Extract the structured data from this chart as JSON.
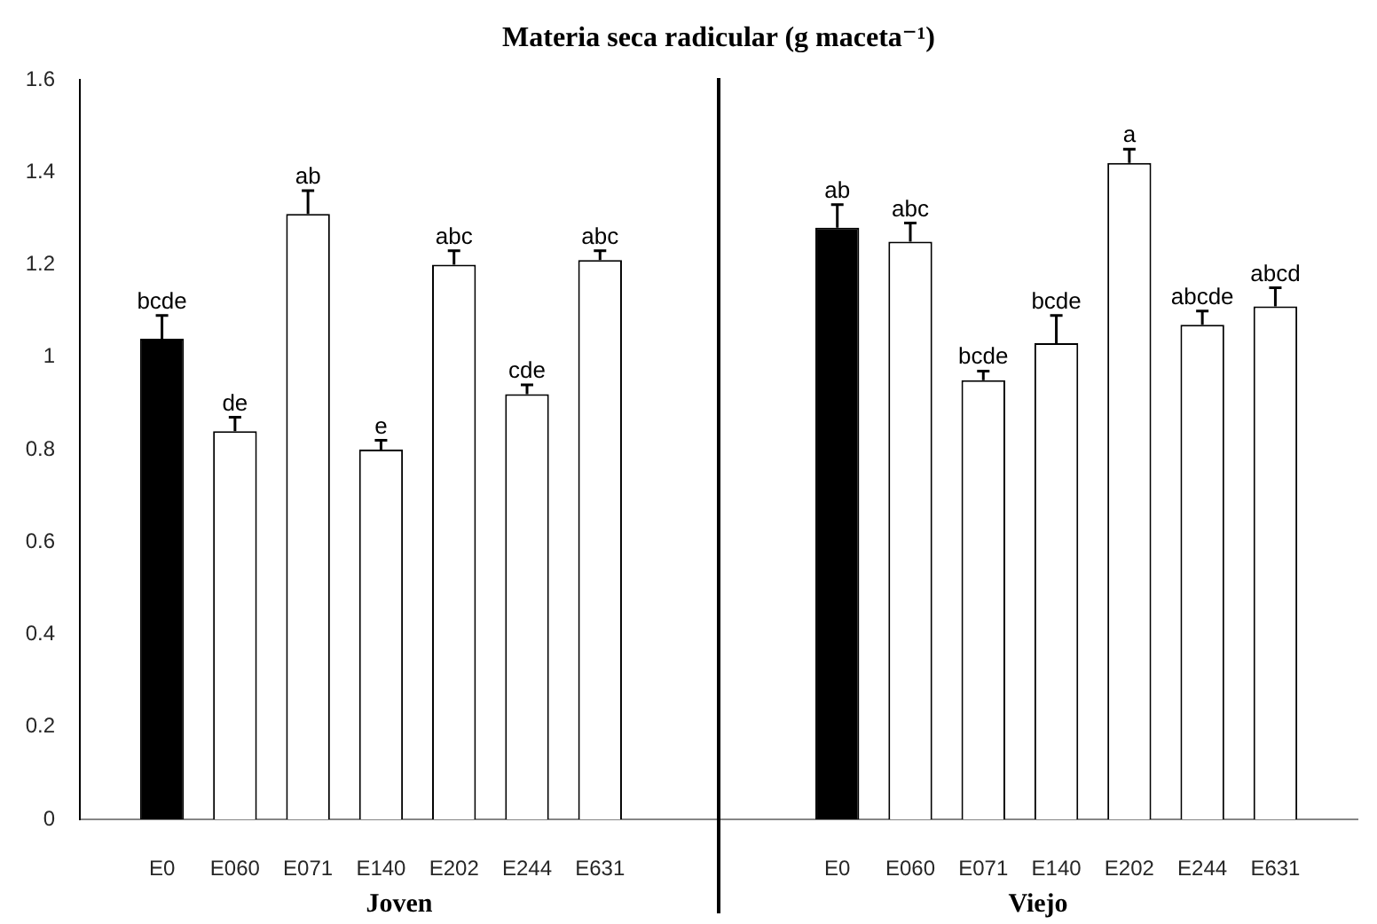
{
  "chart_data": [
    {
      "type": "bar",
      "title": "Materia seca radicular (g maceta⁻¹)",
      "xlabel": "Joven",
      "categories": [
        "E0",
        "E060",
        "E071",
        "E140",
        "E202",
        "E244",
        "E631"
      ],
      "values": [
        1.04,
        0.84,
        1.31,
        0.8,
        1.2,
        0.92,
        1.21
      ],
      "colors": [
        "#000000",
        "#ffffff",
        "#ffffff",
        "#ffffff",
        "#ffffff",
        "#ffffff",
        "#ffffff"
      ],
      "errors": [
        [
          1.04,
          1.09
        ],
        [
          0.84,
          0.87
        ],
        [
          1.31,
          1.36
        ],
        [
          0.8,
          0.82
        ],
        [
          1.2,
          1.23
        ],
        [
          0.92,
          0.94
        ],
        [
          1.21,
          1.23
        ]
      ],
      "ylim": [
        0,
        1.6
      ],
      "yticks": [
        0,
        0.2,
        0.4,
        0.6,
        0.8,
        1,
        1.2,
        1.4,
        1.6
      ],
      "annotations": [
        {
          "text": "bcde",
          "x": "E0",
          "y": 1.09
        },
        {
          "text": "de",
          "x": "E060",
          "y": 0.87
        },
        {
          "text": "ab",
          "x": "E071",
          "y": 1.36
        },
        {
          "text": "e",
          "x": "E140",
          "y": 0.82
        },
        {
          "text": "abc",
          "x": "E202",
          "y": 1.23
        },
        {
          "text": "cde",
          "x": "E244",
          "y": 0.94
        },
        {
          "text": "abc",
          "x": "E631",
          "y": 1.23
        }
      ]
    },
    {
      "type": "bar",
      "xlabel": "Viejo",
      "categories": [
        "E0",
        "E060",
        "E071",
        "E140",
        "E202",
        "E244",
        "E631"
      ],
      "values": [
        1.28,
        1.25,
        0.95,
        1.03,
        1.42,
        1.07,
        1.11
      ],
      "colors": [
        "#000000",
        "#ffffff",
        "#ffffff",
        "#ffffff",
        "#ffffff",
        "#ffffff",
        "#ffffff"
      ],
      "errors": [
        [
          1.28,
          1.33
        ],
        [
          1.25,
          1.29
        ],
        [
          0.95,
          0.97
        ],
        [
          1.03,
          1.09
        ],
        [
          1.42,
          1.45
        ],
        [
          1.07,
          1.1
        ],
        [
          1.11,
          1.15
        ]
      ],
      "ylim": [
        0,
        1.6
      ],
      "yticks": [
        0,
        0.2,
        0.4,
        0.6,
        0.8,
        1,
        1.2,
        1.4,
        1.6
      ],
      "tick_labels": "x",
      "annotations": [
        {
          "text": "ab",
          "x": "E0",
          "y": 1.33
        },
        {
          "text": "abc",
          "x": "E060",
          "y": 1.29
        },
        {
          "text": "bcde",
          "x": "E071",
          "y": 0.97
        },
        {
          "text": "bcde",
          "x": "E140",
          "y": 1.09
        },
        {
          "text": "a",
          "x": "E202",
          "y": 1.45
        },
        {
          "text": "abcde",
          "x": "E244",
          "y": 1.1
        },
        {
          "text": "abcd",
          "x": "E631",
          "y": 1.15
        }
      ]
    }
  ]
}
